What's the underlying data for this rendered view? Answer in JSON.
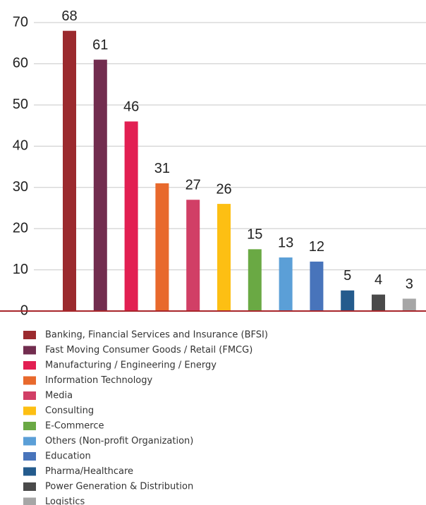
{
  "chart_data": {
    "type": "bar",
    "categories": [
      "Banking, Financial Services and Insurance (BFSI)",
      "Fast Moving Consumer Goods / Retail (FMCG)",
      "Manufacturing / Engineering / Energy",
      "Information Technology",
      "Media",
      "Consulting",
      "E-Commerce",
      "Others (Non-profit Organization)",
      "Education",
      "Pharma/Healthcare",
      "Power Generation & Distribution",
      "Logistics"
    ],
    "values": [
      68,
      61,
      46,
      31,
      27,
      26,
      15,
      13,
      12,
      5,
      4,
      3
    ],
    "colors": [
      "#9b2a2e",
      "#722d4f",
      "#e21f52",
      "#e8692c",
      "#d13f66",
      "#fdbf13",
      "#6aa944",
      "#5b9fd7",
      "#4874bb",
      "#245b8d",
      "#4a4a4a",
      "#a6a6a6"
    ],
    "ylim": [
      0,
      70
    ],
    "yticks": [
      0,
      10,
      20,
      30,
      40,
      50,
      60,
      70
    ],
    "grid": true,
    "legend": "bottom"
  }
}
